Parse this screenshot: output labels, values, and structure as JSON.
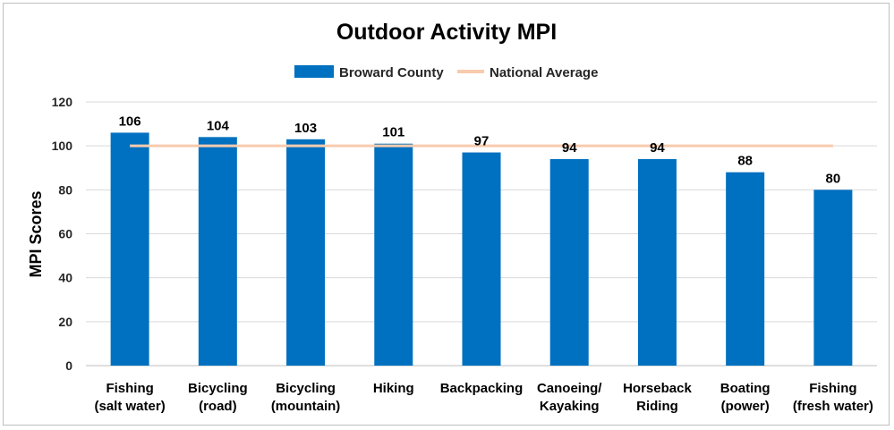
{
  "chart_data": {
    "type": "bar",
    "title": "Outdoor Activity MPI",
    "xlabel": "",
    "ylabel": "MPI Scores",
    "ylim": [
      0,
      120
    ],
    "yticks": [
      0,
      20,
      40,
      60,
      80,
      100,
      120
    ],
    "grid": true,
    "legend_position": "top",
    "categories": [
      [
        "Fishing",
        "(salt water)"
      ],
      [
        "Bicycling",
        "(road)"
      ],
      [
        "Bicycling",
        "(mountain)"
      ],
      [
        "Hiking"
      ],
      [
        "Backpacking"
      ],
      [
        "Canoeing/",
        "Kayaking"
      ],
      [
        "Horseback",
        "Riding"
      ],
      [
        "Boating",
        "(power)"
      ],
      [
        "Fishing",
        "(fresh water)"
      ]
    ],
    "series": [
      {
        "name": "Broward County",
        "type": "bar",
        "color": "#0070C0",
        "values": [
          106,
          104,
          103,
          101,
          97,
          94,
          94,
          88,
          80
        ]
      },
      {
        "name": "National Average",
        "type": "line",
        "color": "#F8CBAD",
        "values": [
          100,
          100,
          100,
          100,
          100,
          100,
          100,
          100,
          100
        ]
      }
    ]
  }
}
